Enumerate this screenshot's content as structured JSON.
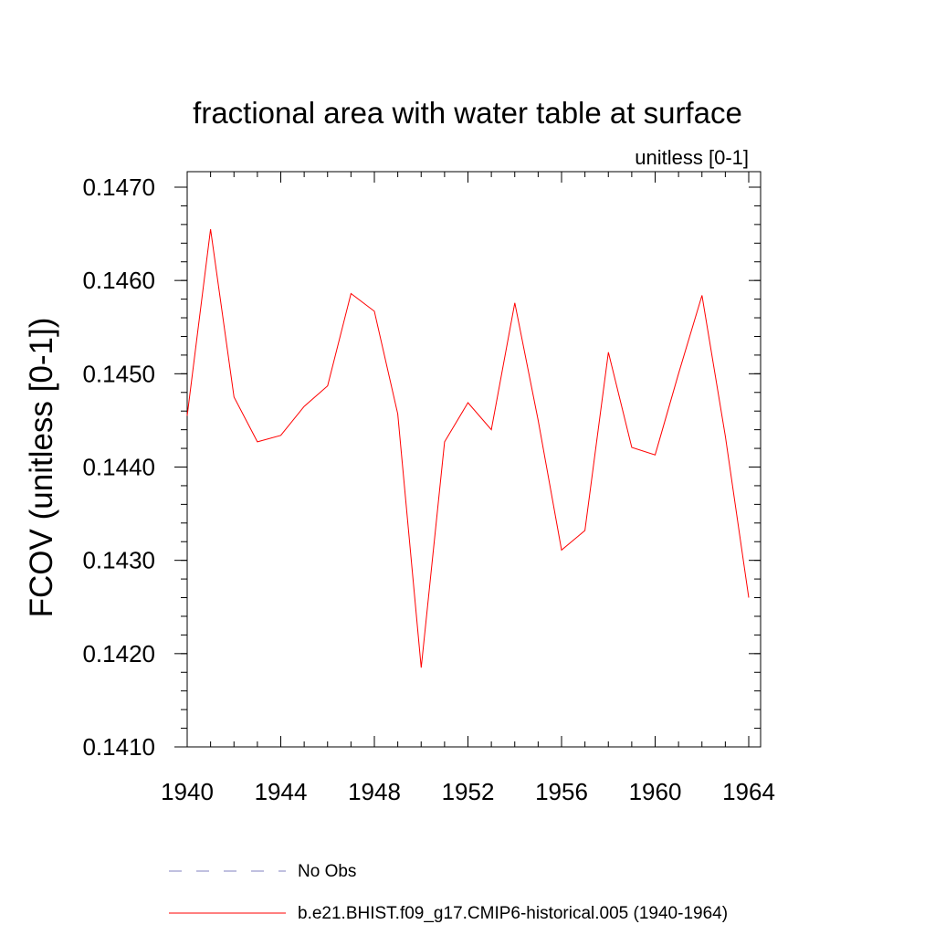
{
  "chart_data": {
    "type": "line",
    "title": "fractional area with water table at surface",
    "subtitle": "unitless [0-1]",
    "xlabel": "",
    "ylabel": "FCOV  (unitless [0-1])",
    "xlim": [
      1940,
      1964
    ],
    "ylim": [
      0.141,
      0.147
    ],
    "x_ticks": [
      1940,
      1944,
      1948,
      1952,
      1956,
      1960,
      1964
    ],
    "x_tick_labels": [
      "1940",
      "1944",
      "1948",
      "1952",
      "1956",
      "1960",
      "1964"
    ],
    "y_ticks": [
      0.141,
      0.142,
      0.143,
      0.144,
      0.145,
      0.146,
      0.147
    ],
    "y_tick_labels": [
      "0.1410",
      "0.1420",
      "0.1430",
      "0.1440",
      "0.1450",
      "0.1460",
      "0.1470"
    ],
    "grid": false,
    "legend_position": "bottom",
    "series": [
      {
        "name": "b.e21.BHIST.f09_g17.CMIP6-historical.005 (1940-1964)",
        "color": "#ff0000",
        "style": "solid",
        "x": [
          1940,
          1941,
          1942,
          1943,
          1944,
          1945,
          1946,
          1947,
          1948,
          1949,
          1950,
          1951,
          1952,
          1953,
          1954,
          1955,
          1956,
          1957,
          1958,
          1959,
          1960,
          1961,
          1962,
          1963,
          1964
        ],
        "values": [
          0.14455,
          0.14655,
          0.14475,
          0.14427,
          0.14434,
          0.14465,
          0.14487,
          0.14586,
          0.14567,
          0.14457,
          0.14185,
          0.14427,
          0.14469,
          0.1444,
          0.14576,
          0.1445,
          0.14311,
          0.14332,
          0.14523,
          0.14421,
          0.14413,
          0.145,
          0.14584,
          0.14433,
          0.1426
        ]
      }
    ],
    "legend": [
      {
        "label": "No Obs",
        "color": "#8080c0",
        "style": "dashed"
      },
      {
        "label": "b.e21.BHIST.f09_g17.CMIP6-historical.005 (1940-1964)",
        "color": "#ff0000",
        "style": "solid"
      }
    ]
  }
}
